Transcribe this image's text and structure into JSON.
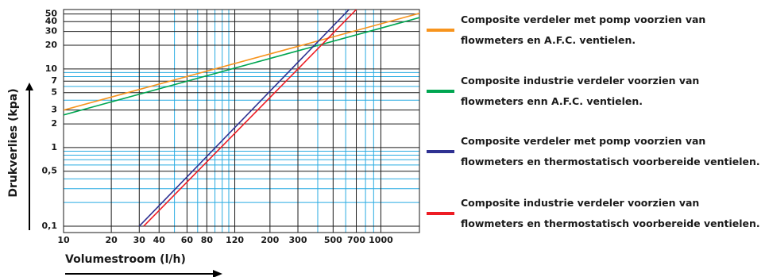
{
  "chart_data": {
    "type": "line",
    "xlabel": "Volumestroom (l/h)",
    "ylabel": "Drukverlies (kpa)",
    "xscale": "log",
    "yscale": "log",
    "grid": true,
    "xlim": [
      10,
      1750
    ],
    "ylim": [
      0.083,
      57
    ],
    "xticks": [
      10,
      20,
      30,
      40,
      60,
      80,
      120,
      200,
      300,
      500,
      700,
      1000
    ],
    "xminor_ticks": [
      50,
      70,
      90,
      100,
      110,
      400,
      600,
      800,
      900
    ],
    "yticks": [
      {
        "value": 0.1,
        "label": "0,1"
      },
      {
        "value": 0.5,
        "label": "0,5"
      },
      1,
      2,
      3,
      5,
      7,
      10,
      20,
      30,
      40,
      50
    ],
    "yminor_ticks": [
      0.2,
      0.3,
      0.4,
      0.6,
      0.7,
      0.8,
      0.9,
      4,
      6,
      8,
      9
    ],
    "grid_color": "#1a1a1a",
    "minor_grid_color": "#29abe2",
    "series": [
      {
        "name": "Composite verdeler met pomp voorzien van flowmeters en A.F.C. ventielen.",
        "color": "#f7941d",
        "x": [
          10,
          1750
        ],
        "values": [
          3.0,
          51
        ]
      },
      {
        "name": "Composite industrie verdeler voorzien van flowmeters enn A.F.C. ventielen.",
        "color": "#00a651",
        "x": [
          10,
          1750
        ],
        "values": [
          2.6,
          45
        ]
      },
      {
        "name": "Composite verdeler met pomp voorzien van flowmeters en thermostatisch voorbereide ventielen.",
        "color": "#2e3192",
        "x": [
          30,
          630
        ],
        "values": [
          0.1,
          57
        ]
      },
      {
        "name": "Composite industrie verdeler voorzien van flowmeters en thermostatisch voorbereide ventielen.",
        "color": "#ed1c24",
        "x": [
          32,
          700
        ],
        "values": [
          0.1,
          57
        ]
      }
    ]
  }
}
